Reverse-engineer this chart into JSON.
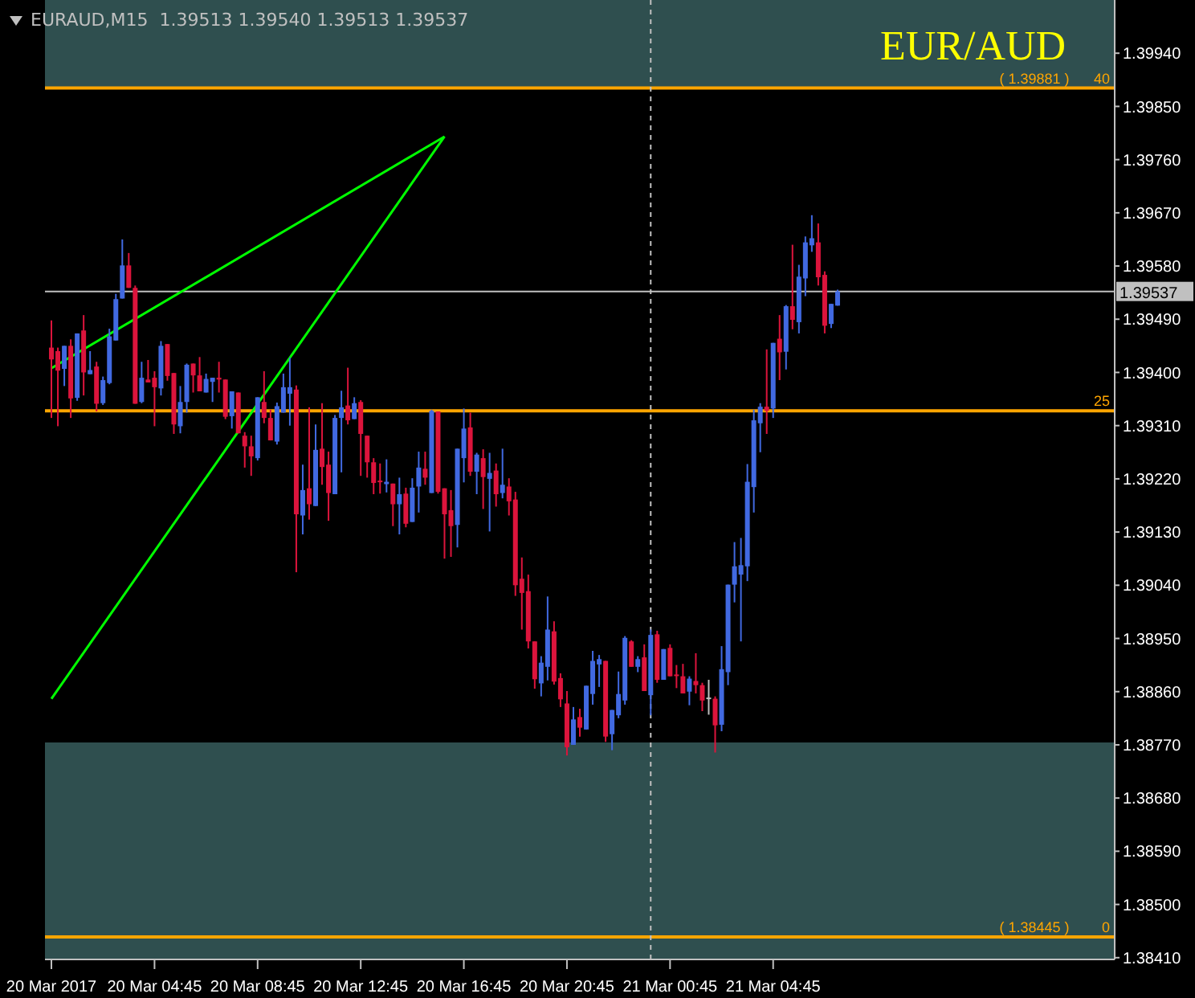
{
  "chart_data": {
    "type": "candlestick",
    "title": "EUR/AUD",
    "subtitle": "EURAUD,M15  1.39513 1.39540 1.39513 1.39537",
    "x": [
      "2017-03-20T00:45",
      "2017-03-20T01:00",
      "2017-03-20T01:15",
      "2017-03-20T01:30",
      "2017-03-20T01:45",
      "2017-03-20T02:00",
      "2017-03-20T02:15",
      "2017-03-20T02:30",
      "2017-03-20T02:45",
      "2017-03-20T03:00",
      "2017-03-20T03:15",
      "2017-03-20T03:30",
      "2017-03-20T03:45",
      "2017-03-20T04:00",
      "2017-03-20T04:15",
      "2017-03-20T04:30",
      "2017-03-20T04:45",
      "2017-03-20T05:00",
      "2017-03-20T05:15",
      "2017-03-20T05:30",
      "2017-03-20T05:45",
      "2017-03-20T06:00",
      "2017-03-20T06:15",
      "2017-03-20T06:30",
      "2017-03-20T06:45",
      "2017-03-20T07:00",
      "2017-03-20T07:15",
      "2017-03-20T07:30",
      "2017-03-20T07:45",
      "2017-03-20T08:00",
      "2017-03-20T08:15",
      "2017-03-20T08:30",
      "2017-03-20T08:45",
      "2017-03-20T09:00",
      "2017-03-20T09:15",
      "2017-03-20T09:30",
      "2017-03-20T09:45",
      "2017-03-20T10:00",
      "2017-03-20T10:15",
      "2017-03-20T10:30",
      "2017-03-20T10:45",
      "2017-03-20T11:00",
      "2017-03-20T11:15",
      "2017-03-20T11:30",
      "2017-03-20T11:45",
      "2017-03-20T12:00",
      "2017-03-20T12:15",
      "2017-03-20T12:30",
      "2017-03-20T12:45",
      "2017-03-20T13:00",
      "2017-03-20T13:15",
      "2017-03-20T13:30",
      "2017-03-20T13:45",
      "2017-03-20T14:00",
      "2017-03-20T14:15",
      "2017-03-20T14:30",
      "2017-03-20T14:45",
      "2017-03-20T15:00",
      "2017-03-20T15:15",
      "2017-03-20T15:30",
      "2017-03-20T15:45",
      "2017-03-20T16:00",
      "2017-03-20T16:15",
      "2017-03-20T16:30",
      "2017-03-20T16:45",
      "2017-03-20T17:00",
      "2017-03-20T17:15",
      "2017-03-20T17:30",
      "2017-03-20T17:45",
      "2017-03-20T18:00",
      "2017-03-20T18:15",
      "2017-03-20T18:30",
      "2017-03-20T18:45",
      "2017-03-20T19:00",
      "2017-03-20T19:15",
      "2017-03-20T19:30",
      "2017-03-20T19:45",
      "2017-03-20T20:00",
      "2017-03-20T20:15",
      "2017-03-20T20:30",
      "2017-03-20T20:45",
      "2017-03-20T21:00",
      "2017-03-20T21:15",
      "2017-03-20T21:30",
      "2017-03-20T21:45",
      "2017-03-20T22:00",
      "2017-03-20T22:15",
      "2017-03-20T22:30",
      "2017-03-20T22:45",
      "2017-03-20T23:00",
      "2017-03-20T23:15",
      "2017-03-20T23:30",
      "2017-03-20T23:45",
      "2017-03-21T00:00",
      "2017-03-21T00:15",
      "2017-03-21T00:30",
      "2017-03-21T00:45",
      "2017-03-21T01:00",
      "2017-03-21T01:15",
      "2017-03-21T01:30",
      "2017-03-21T01:45",
      "2017-03-21T02:00",
      "2017-03-21T02:15",
      "2017-03-21T02:30",
      "2017-03-21T02:45",
      "2017-03-21T03:00",
      "2017-03-21T03:15",
      "2017-03-21T03:30",
      "2017-03-21T03:45",
      "2017-03-21T04:00",
      "2017-03-21T04:15",
      "2017-03-21T04:30",
      "2017-03-21T04:45",
      "2017-03-21T05:00",
      "2017-03-21T05:15",
      "2017-03-21T05:30",
      "2017-03-21T05:45",
      "2017-03-21T06:00",
      "2017-03-21T06:15",
      "2017-03-21T06:30",
      "2017-03-21T06:45",
      "2017-03-21T07:00",
      "2017-03-21T07:15"
    ],
    "ohlc": [
      [
        1.39442,
        1.39488,
        1.39323,
        1.39422
      ],
      [
        1.39436,
        1.39442,
        1.39309,
        1.39403
      ],
      [
        1.39406,
        1.39445,
        1.39377,
        1.39445
      ],
      [
        1.39445,
        1.39456,
        1.39323,
        1.39356
      ],
      [
        1.39357,
        1.39466,
        1.39352,
        1.39466
      ],
      [
        1.39471,
        1.39497,
        1.39361,
        1.394
      ],
      [
        1.39397,
        1.39436,
        1.39397,
        1.39404
      ],
      [
        1.3941,
        1.39418,
        1.39334,
        1.39347
      ],
      [
        1.39348,
        1.39393,
        1.39345,
        1.39387
      ],
      [
        1.39382,
        1.39474,
        1.3938,
        1.39461
      ],
      [
        1.39454,
        1.39533,
        1.39454,
        1.39524
      ],
      [
        1.39525,
        1.39625,
        1.39525,
        1.39581
      ],
      [
        1.39581,
        1.39602,
        1.39543,
        1.39543
      ],
      [
        1.39543,
        1.39547,
        1.39347,
        1.39347
      ],
      [
        1.3935,
        1.39418,
        1.39348,
        1.39391
      ],
      [
        1.39388,
        1.39421,
        1.39383,
        1.39383
      ],
      [
        1.39391,
        1.39402,
        1.39309,
        1.39375
      ],
      [
        1.39373,
        1.39453,
        1.39361,
        1.39445
      ],
      [
        1.39448,
        1.39448,
        1.39386,
        1.39394
      ],
      [
        1.39399,
        1.39399,
        1.39296,
        1.39312
      ],
      [
        1.39309,
        1.39377,
        1.39297,
        1.3935
      ],
      [
        1.3935,
        1.39415,
        1.39332,
        1.39413
      ],
      [
        1.39415,
        1.39415,
        1.39366,
        1.39395
      ],
      [
        1.39395,
        1.39426,
        1.39368,
        1.39368
      ],
      [
        1.39366,
        1.39398,
        1.39366,
        1.39389
      ],
      [
        1.39384,
        1.39391,
        1.3935,
        1.39391
      ],
      [
        1.39391,
        1.39418,
        1.39366,
        1.39388
      ],
      [
        1.39388,
        1.39388,
        1.39321,
        1.39325
      ],
      [
        1.39326,
        1.39368,
        1.39305,
        1.39368
      ],
      [
        1.39366,
        1.39366,
        1.39297,
        1.39297
      ],
      [
        1.39293,
        1.39299,
        1.39239,
        1.39275
      ],
      [
        1.39275,
        1.39293,
        1.39225,
        1.39258
      ],
      [
        1.39255,
        1.39358,
        1.39251,
        1.39358
      ],
      [
        1.3935,
        1.39402,
        1.39314,
        1.39323
      ],
      [
        1.39323,
        1.39337,
        1.39285,
        1.39285
      ],
      [
        1.39283,
        1.39349,
        1.39278,
        1.39343
      ],
      [
        1.39332,
        1.39398,
        1.39332,
        1.39375
      ],
      [
        1.39364,
        1.39425,
        1.3931,
        1.39375
      ],
      [
        1.39371,
        1.39378,
        1.39062,
        1.3916
      ],
      [
        1.39158,
        1.39244,
        1.39126,
        1.39201
      ],
      [
        1.39204,
        1.39341,
        1.39151,
        1.39177
      ],
      [
        1.39174,
        1.39312,
        1.39174,
        1.39269
      ],
      [
        1.39271,
        1.39348,
        1.3921,
        1.3924
      ],
      [
        1.39244,
        1.39266,
        1.39149,
        1.39196
      ],
      [
        1.39194,
        1.39328,
        1.39194,
        1.39323
      ],
      [
        1.39323,
        1.39369,
        1.39231,
        1.39341
      ],
      [
        1.39344,
        1.39408,
        1.39312,
        1.39319
      ],
      [
        1.39321,
        1.39358,
        1.39321,
        1.39348
      ],
      [
        1.3935,
        1.39353,
        1.39225,
        1.39296
      ],
      [
        1.39293,
        1.39293,
        1.39222,
        1.39248
      ],
      [
        1.39248,
        1.39255,
        1.39194,
        1.39213
      ],
      [
        1.39217,
        1.39246,
        1.39195,
        1.39215
      ],
      [
        1.39211,
        1.39253,
        1.39197,
        1.39215
      ],
      [
        1.39212,
        1.39212,
        1.3914,
        1.39177
      ],
      [
        1.39177,
        1.39222,
        1.39126,
        1.39194
      ],
      [
        1.39195,
        1.39205,
        1.39138,
        1.39144
      ],
      [
        1.39147,
        1.39221,
        1.39147,
        1.39205
      ],
      [
        1.39207,
        1.39266,
        1.39163,
        1.39239
      ],
      [
        1.39237,
        1.39266,
        1.3921,
        1.39222
      ],
      [
        1.39196,
        1.39337,
        1.39196,
        1.39335
      ],
      [
        1.39334,
        1.39334,
        1.39195,
        1.39198
      ],
      [
        1.39204,
        1.39204,
        1.39085,
        1.3916
      ],
      [
        1.39167,
        1.39201,
        1.39088,
        1.3914
      ],
      [
        1.39142,
        1.39271,
        1.39104,
        1.39271
      ],
      [
        1.39255,
        1.39339,
        1.39214,
        1.39305
      ],
      [
        1.39307,
        1.39332,
        1.39225,
        1.39232
      ],
      [
        1.39232,
        1.39264,
        1.39194,
        1.39261
      ],
      [
        1.39255,
        1.3927,
        1.39169,
        1.39223
      ],
      [
        1.3922,
        1.39264,
        1.39131,
        1.3923
      ],
      [
        1.39234,
        1.39246,
        1.39173,
        1.39194
      ],
      [
        1.39196,
        1.39271,
        1.39187,
        1.3921
      ],
      [
        1.39207,
        1.39221,
        1.39158,
        1.39182
      ],
      [
        1.39185,
        1.39198,
        1.39022,
        1.3904
      ],
      [
        1.39051,
        1.39087,
        1.38965,
        1.39027
      ],
      [
        1.3903,
        1.39058,
        1.38933,
        1.38945
      ],
      [
        1.38945,
        1.38945,
        1.38865,
        1.38881
      ],
      [
        1.38874,
        1.3892,
        1.38852,
        1.38909
      ],
      [
        1.38902,
        1.39021,
        1.38879,
        1.38965
      ],
      [
        1.38962,
        1.38979,
        1.38872,
        1.38877
      ],
      [
        1.38883,
        1.38891,
        1.38834,
        1.38847
      ],
      [
        1.3884,
        1.38861,
        1.38752,
        1.38766
      ],
      [
        1.3877,
        1.38834,
        1.3877,
        1.38813
      ],
      [
        1.38817,
        1.38831,
        1.38784,
        1.38799
      ],
      [
        1.38796,
        1.3887,
        1.38796,
        1.3887
      ],
      [
        1.38856,
        1.38929,
        1.38838,
        1.38912
      ],
      [
        1.38906,
        1.38922,
        1.38868,
        1.38915
      ],
      [
        1.38912,
        1.38912,
        1.38775,
        1.38784
      ],
      [
        1.38788,
        1.38829,
        1.38761,
        1.38829
      ],
      [
        1.3882,
        1.38894,
        1.38815,
        1.38856
      ],
      [
        1.38845,
        1.38954,
        1.38838,
        1.38951
      ],
      [
        1.38945,
        1.38947,
        1.38902,
        1.38902
      ],
      [
        1.38902,
        1.3892,
        1.38893,
        1.38915
      ],
      [
        1.38918,
        1.3894,
        1.38861,
        1.38861
      ],
      [
        1.38854,
        1.38965,
        1.3882,
        1.38956
      ],
      [
        1.38957,
        1.38963,
        1.38875,
        1.3888
      ],
      [
        1.3888,
        1.38932,
        1.3888,
        1.38932
      ],
      [
        1.38934,
        1.3894,
        1.38886,
        1.38886
      ],
      [
        1.38889,
        1.38905,
        1.38866,
        1.38887
      ],
      [
        1.38886,
        1.38907,
        1.38857,
        1.38857
      ],
      [
        1.3886,
        1.38886,
        1.38837,
        1.38882
      ],
      [
        1.38878,
        1.38925,
        1.38857,
        1.38871
      ],
      [
        1.38871,
        1.38875,
        1.38827,
        1.38845
      ],
      [
        1.3885,
        1.3888,
        1.38821,
        1.3885
      ],
      [
        1.38848,
        1.38852,
        1.38757,
        1.38803
      ],
      [
        1.38804,
        1.38937,
        1.38793,
        1.38898
      ],
      [
        1.38893,
        1.39041,
        1.38871,
        1.39041
      ],
      [
        1.39041,
        1.39113,
        1.39011,
        1.39072
      ],
      [
        1.39058,
        1.3912,
        1.38945,
        1.39074
      ],
      [
        1.39072,
        1.39245,
        1.39047,
        1.39215
      ],
      [
        1.39206,
        1.39337,
        1.39163,
        1.39319
      ],
      [
        1.39314,
        1.39348,
        1.39265,
        1.39342
      ],
      [
        1.39342,
        1.39439,
        1.39296,
        1.39335
      ],
      [
        1.39339,
        1.3945,
        1.39323,
        1.3945
      ],
      [
        1.39457,
        1.39497,
        1.39387,
        1.39434
      ],
      [
        1.39435,
        1.39514,
        1.39405,
        1.39512
      ],
      [
        1.39512,
        1.39616,
        1.39473,
        1.39489
      ],
      [
        1.39485,
        1.39582,
        1.39466,
        1.39562
      ],
      [
        1.39559,
        1.3963,
        1.39529,
        1.3962
      ],
      [
        1.39615,
        1.39666,
        1.39604,
        1.39627
      ],
      [
        1.3962,
        1.39652,
        1.39547,
        1.39561
      ],
      [
        1.39565,
        1.39571,
        1.39466,
        1.39479
      ],
      [
        1.39482,
        1.39516,
        1.39475,
        1.39516
      ],
      [
        1.39513,
        1.3954,
        1.39513,
        1.39537
      ]
    ],
    "colors": [
      "#dc143c",
      "#dc143c",
      "#4169e1",
      "#dc143c",
      "#4169e1",
      "#dc143c",
      "#4169e1",
      "#dc143c",
      "#4169e1",
      "#4169e1",
      "#4169e1",
      "#4169e1",
      "#dc143c",
      "#dc143c",
      "#4169e1",
      "#dc143c",
      "#dc143c",
      "#4169e1",
      "#dc143c",
      "#dc143c",
      "#4169e1",
      "#4169e1",
      "#dc143c",
      "#dc143c",
      "#4169e1",
      "#4169e1",
      "#dc143c",
      "#dc143c",
      "#4169e1",
      "#dc143c",
      "#dc143c",
      "#dc143c",
      "#4169e1",
      "#dc143c",
      "#dc143c",
      "#4169e1",
      "#4169e1",
      "#4169e1",
      "#dc143c",
      "#4169e1",
      "#dc143c",
      "#4169e1",
      "#dc143c",
      "#dc143c",
      "#4169e1",
      "#4169e1",
      "#dc143c",
      "#4169e1",
      "#dc143c",
      "#dc143c",
      "#dc143c",
      "#dc143c",
      "#4169e1",
      "#dc143c",
      "#4169e1",
      "#dc143c",
      "#4169e1",
      "#4169e1",
      "#dc143c",
      "#4169e1",
      "#dc143c",
      "#dc143c",
      "#dc143c",
      "#4169e1",
      "#4169e1",
      "#dc143c",
      "#4169e1",
      "#dc143c",
      "#4169e1",
      "#dc143c",
      "#4169e1",
      "#dc143c",
      "#dc143c",
      "#dc143c",
      "#dc143c",
      "#dc143c",
      "#4169e1",
      "#4169e1",
      "#dc143c",
      "#dc143c",
      "#dc143c",
      "#4169e1",
      "#dc143c",
      "#4169e1",
      "#4169e1",
      "#4169e1",
      "#dc143c",
      "#4169e1",
      "#4169e1",
      "#4169e1",
      "#dc143c",
      "#4169e1",
      "#dc143c",
      "#4169e1",
      "#dc143c",
      "#4169e1",
      "#dc143c",
      "#dc143c",
      "#dc143c",
      "#4169e1",
      "#dc143c",
      "#dc143c",
      "#c0c0c0",
      "#dc143c",
      "#4169e1",
      "#4169e1",
      "#4169e1",
      "#4169e1",
      "#4169e1",
      "#4169e1",
      "#4169e1",
      "#dc143c",
      "#4169e1",
      "#dc143c",
      "#4169e1",
      "#dc143c",
      "#4169e1",
      "#4169e1",
      "#4169e1",
      "#dc143c",
      "#dc143c",
      "#4169e1",
      "#4169e1"
    ],
    "series": [
      {
        "type": "line",
        "color": "#00ff00",
        "x": [
          "2017-03-20T00:45",
          "2017-03-20T16:00"
        ],
        "values": [
          1.39407,
          1.39799
        ]
      },
      {
        "type": "line",
        "color": "#00ff00",
        "x": [
          "2017-03-20T00:45",
          "2017-03-20T16:00"
        ],
        "values": [
          1.38848,
          1.39799
        ]
      }
    ],
    "xlim": [
      "2017-03-20T00:30",
      "2017-03-21T18:00"
    ],
    "xticks": [
      {
        "value": "2017-03-20T00:45",
        "label": "20 Mar 2017"
      },
      {
        "value": "2017-03-20T04:45",
        "label": "20 Mar 04:45"
      },
      {
        "value": "2017-03-20T08:45",
        "label": "20 Mar 08:45"
      },
      {
        "value": "2017-03-20T12:45",
        "label": "20 Mar 12:45"
      },
      {
        "value": "2017-03-20T16:45",
        "label": "20 Mar 16:45"
      },
      {
        "value": "2017-03-20T20:45",
        "label": "20 Mar 20:45"
      },
      {
        "value": "2017-03-21T00:45",
        "label": "21 Mar 00:45"
      },
      {
        "value": "2017-03-21T04:45",
        "label": "21 Mar 04:45"
      }
    ],
    "ylim": [
      1.38407,
      1.4003
    ],
    "yticks": [
      {
        "value": 1.3841,
        "label": "1.38410"
      },
      {
        "value": 1.385,
        "label": "1.38500"
      },
      {
        "value": 1.3859,
        "label": "1.38590"
      },
      {
        "value": 1.3868,
        "label": "1.38680"
      },
      {
        "value": 1.3877,
        "label": "1.38770"
      },
      {
        "value": 1.3886,
        "label": "1.38860"
      },
      {
        "value": 1.3895,
        "label": "1.38950"
      },
      {
        "value": 1.3904,
        "label": "1.39040"
      },
      {
        "value": 1.3913,
        "label": "1.39130"
      },
      {
        "value": 1.3922,
        "label": "1.39220"
      },
      {
        "value": 1.3931,
        "label": "1.39310"
      },
      {
        "value": 1.394,
        "label": "1.39400"
      },
      {
        "value": 1.3949,
        "label": "1.39490"
      },
      {
        "value": 1.3958,
        "label": "1.39580"
      },
      {
        "value": 1.3967,
        "label": "1.39670"
      },
      {
        "value": 1.3976,
        "label": "1.39760"
      },
      {
        "value": 1.3985,
        "label": "1.39850"
      },
      {
        "value": 1.3994,
        "label": "1.39940"
      }
    ],
    "ref_lines": [
      {
        "axis": "y",
        "value": 1.39881,
        "label": "( 1.39881 )",
        "color": "#ffa500",
        "line_style": "solid"
      },
      {
        "axis": "y",
        "value": 1.39335,
        "color": "#ffa500",
        "line_style": "solid"
      },
      {
        "axis": "y",
        "value": 1.38445,
        "label": "( 1.38445 )",
        "color": "#ffa500",
        "line_style": "solid"
      },
      {
        "axis": "y",
        "value": 1.39537,
        "label": "1.39537",
        "color": "#c0c0c0",
        "line_style": "solid"
      },
      {
        "axis": "x",
        "value": "2017-03-21T00:00",
        "color": "#c0c0c0",
        "line_style": "dashed"
      }
    ],
    "bands": [
      {
        "axis": "y",
        "from": 1.39881,
        "to": 1.4003,
        "color": "#2f4f4f"
      },
      {
        "axis": "y",
        "from": 1.38407,
        "to": 1.38774,
        "color": "#2f4f4f"
      }
    ],
    "annotations": [
      {
        "text": "40",
        "x": "2017-03-21T18:00",
        "y": 1.39881
      },
      {
        "text": "25",
        "x": "2017-03-21T18:00",
        "y": 1.39335
      },
      {
        "text": "0",
        "x": "2017-03-21T18:00",
        "y": 1.38445
      }
    ]
  }
}
